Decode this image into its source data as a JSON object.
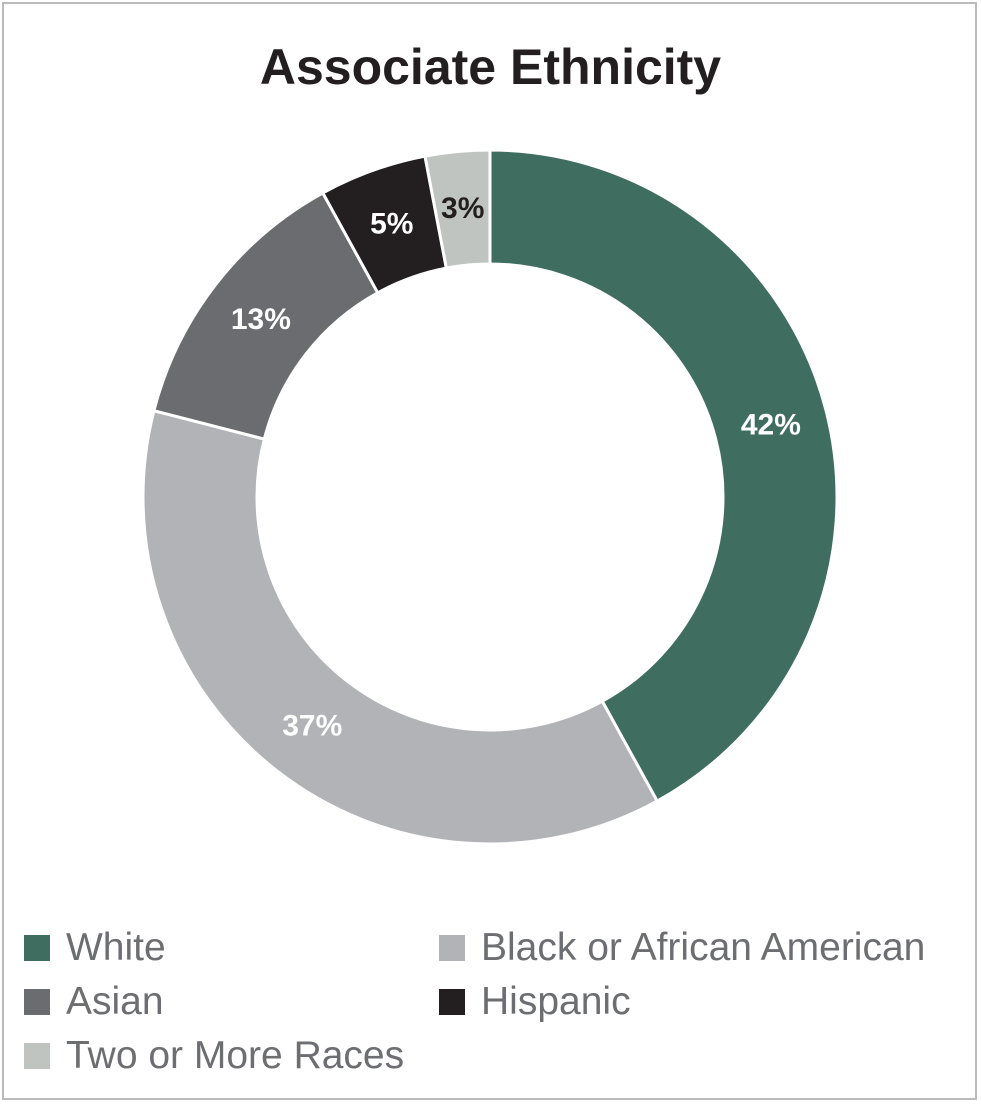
{
  "chart_data": {
    "type": "pie",
    "title": "Associate Ethnicity",
    "slices": [
      {
        "label": "White",
        "value": 42,
        "display": "42%",
        "color": "#3f6e61",
        "text_color": "#ffffff"
      },
      {
        "label": "Black or African American",
        "value": 37,
        "display": "37%",
        "color": "#b2b3b6",
        "text_color": "#ffffff"
      },
      {
        "label": "Asian",
        "value": 13,
        "display": "13%",
        "color": "#6b6c6f",
        "text_color": "#ffffff"
      },
      {
        "label": "Hispanic",
        "value": 5,
        "display": "5%",
        "color": "#231f20",
        "text_color": "#ffffff"
      },
      {
        "label": "Two or More Races",
        "value": 3,
        "display": "3%",
        "color": "#bfc4c0",
        "text_color": "#231f20"
      }
    ],
    "legend_position": "bottom"
  }
}
